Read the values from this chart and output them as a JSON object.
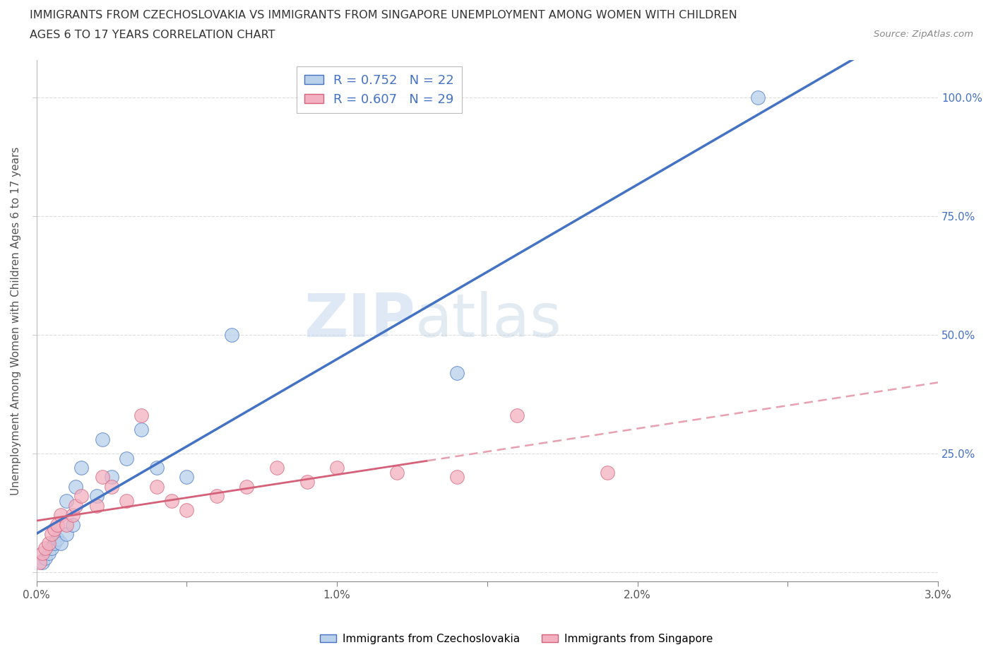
{
  "title_line1": "IMMIGRANTS FROM CZECHOSLOVAKIA VS IMMIGRANTS FROM SINGAPORE UNEMPLOYMENT AMONG WOMEN WITH CHILDREN",
  "title_line2": "AGES 6 TO 17 YEARS CORRELATION CHART",
  "source": "Source: ZipAtlas.com",
  "ylabel": "Unemployment Among Women with Children Ages 6 to 17 years",
  "xlim": [
    0.0,
    0.03
  ],
  "ylim": [
    -0.02,
    1.08
  ],
  "xticks": [
    0.0,
    0.005,
    0.01,
    0.015,
    0.02,
    0.025,
    0.03
  ],
  "xtick_labels": [
    "0.0%",
    "",
    "1.0%",
    "",
    "2.0%",
    "",
    "3.0%"
  ],
  "yticks": [
    0.0,
    0.25,
    0.5,
    0.75,
    1.0
  ],
  "ytick_labels": [
    "",
    "25.0%",
    "50.0%",
    "75.0%",
    "100.0%"
  ],
  "legend1_R": "0.752",
  "legend1_N": "22",
  "legend2_R": "0.607",
  "legend2_N": "29",
  "color_czech": "#b8d0ea",
  "color_sing": "#f2b0c0",
  "line_color_czech": "#4472C4",
  "line_color_sing": "#d4607a",
  "line_color_sing_dashed": "#e8a0b0",
  "watermark_zip": "ZIP",
  "watermark_atlas": "atlas",
  "background_color": "#ffffff",
  "czech_x": [
    0.0002,
    0.0003,
    0.0004,
    0.0005,
    0.0006,
    0.0007,
    0.0008,
    0.001,
    0.001,
    0.0012,
    0.0013,
    0.0015,
    0.002,
    0.0022,
    0.0025,
    0.003,
    0.0035,
    0.004,
    0.005,
    0.0065,
    0.014,
    0.024
  ],
  "czech_y": [
    0.02,
    0.03,
    0.04,
    0.05,
    0.06,
    0.07,
    0.06,
    0.08,
    0.15,
    0.1,
    0.18,
    0.22,
    0.16,
    0.28,
    0.2,
    0.24,
    0.3,
    0.22,
    0.2,
    0.5,
    0.42,
    1.0
  ],
  "sing_x": [
    0.0001,
    0.0002,
    0.0003,
    0.0004,
    0.0005,
    0.0006,
    0.0007,
    0.0008,
    0.001,
    0.0012,
    0.0013,
    0.0015,
    0.002,
    0.0022,
    0.0025,
    0.003,
    0.0035,
    0.004,
    0.0045,
    0.005,
    0.006,
    0.007,
    0.008,
    0.009,
    0.01,
    0.012,
    0.014,
    0.016,
    0.019
  ],
  "sing_y": [
    0.02,
    0.04,
    0.05,
    0.06,
    0.08,
    0.09,
    0.1,
    0.12,
    0.1,
    0.12,
    0.14,
    0.16,
    0.14,
    0.2,
    0.18,
    0.15,
    0.33,
    0.18,
    0.15,
    0.13,
    0.16,
    0.18,
    0.22,
    0.19,
    0.22,
    0.21,
    0.2,
    0.33,
    0.21
  ],
  "sing_solid_xlim": [
    0.0,
    0.013
  ],
  "sing_dashed_xlim": [
    0.013,
    0.03
  ]
}
